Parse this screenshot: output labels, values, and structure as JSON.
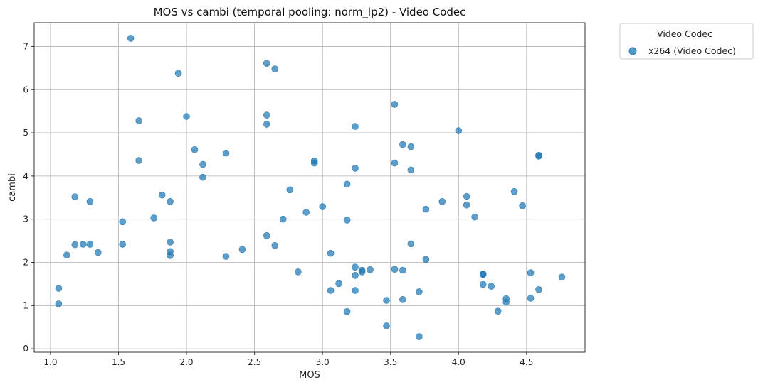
{
  "chart_data": {
    "type": "scatter",
    "title": "MOS vs cambi (temporal pooling: norm_lp2) - Video Codec",
    "xlabel": "MOS",
    "ylabel": "cambi",
    "xlim": [
      0.88,
      4.93
    ],
    "ylim": [
      -0.08,
      7.55
    ],
    "xticks": [
      1.0,
      1.5,
      2.0,
      2.5,
      3.0,
      3.5,
      4.0,
      4.5
    ],
    "xtick_labels": [
      "1.0",
      "1.5",
      "2.0",
      "2.5",
      "3.0",
      "3.5",
      "4.0",
      "4.5"
    ],
    "yticks": [
      0,
      1,
      2,
      3,
      4,
      5,
      6,
      7
    ],
    "ytick_labels": [
      "0",
      "1",
      "2",
      "3",
      "4",
      "5",
      "6",
      "7"
    ],
    "grid": true,
    "legend": {
      "title": "Video Codec",
      "placement": "outside-top-right"
    },
    "series": [
      {
        "name": "x264 (Video Codec)",
        "color": "#1f77b4",
        "points": [
          [
            1.06,
            1.4
          ],
          [
            1.06,
            1.04
          ],
          [
            1.12,
            2.17
          ],
          [
            1.18,
            3.52
          ],
          [
            1.18,
            2.41
          ],
          [
            1.24,
            2.42
          ],
          [
            1.29,
            3.41
          ],
          [
            1.29,
            2.42
          ],
          [
            1.35,
            2.23
          ],
          [
            1.53,
            2.94
          ],
          [
            1.53,
            2.42
          ],
          [
            1.59,
            7.19
          ],
          [
            1.65,
            5.28
          ],
          [
            1.65,
            4.36
          ],
          [
            1.76,
            3.03
          ],
          [
            1.82,
            3.56
          ],
          [
            1.88,
            3.41
          ],
          [
            1.88,
            2.47
          ],
          [
            1.88,
            2.25
          ],
          [
            1.88,
            2.16
          ],
          [
            1.94,
            6.38
          ],
          [
            2.0,
            5.38
          ],
          [
            2.06,
            4.61
          ],
          [
            2.12,
            4.27
          ],
          [
            2.12,
            3.97
          ],
          [
            2.29,
            4.53
          ],
          [
            2.29,
            2.14
          ],
          [
            2.41,
            2.3
          ],
          [
            2.59,
            6.61
          ],
          [
            2.59,
            5.41
          ],
          [
            2.59,
            5.2
          ],
          [
            2.59,
            2.62
          ],
          [
            2.65,
            6.48
          ],
          [
            2.65,
            2.39
          ],
          [
            2.71,
            3.0
          ],
          [
            2.76,
            3.68
          ],
          [
            2.82,
            1.78
          ],
          [
            2.88,
            3.16
          ],
          [
            2.94,
            4.35
          ],
          [
            2.94,
            4.3
          ],
          [
            3.0,
            3.29
          ],
          [
            3.06,
            2.21
          ],
          [
            3.06,
            1.35
          ],
          [
            3.12,
            1.51
          ],
          [
            3.18,
            3.81
          ],
          [
            3.18,
            2.98
          ],
          [
            3.18,
            0.86
          ],
          [
            3.24,
            5.15
          ],
          [
            3.24,
            4.18
          ],
          [
            3.24,
            1.89
          ],
          [
            3.24,
            1.7
          ],
          [
            3.24,
            1.35
          ],
          [
            3.29,
            1.82
          ],
          [
            3.29,
            1.78
          ],
          [
            3.35,
            1.83
          ],
          [
            3.47,
            1.12
          ],
          [
            3.47,
            0.53
          ],
          [
            3.53,
            5.66
          ],
          [
            3.53,
            4.3
          ],
          [
            3.53,
            1.84
          ],
          [
            3.59,
            4.73
          ],
          [
            3.59,
            1.82
          ],
          [
            3.59,
            1.14
          ],
          [
            3.65,
            4.68
          ],
          [
            3.65,
            4.14
          ],
          [
            3.65,
            2.43
          ],
          [
            3.71,
            1.32
          ],
          [
            3.71,
            0.28
          ],
          [
            3.76,
            3.23
          ],
          [
            3.76,
            2.07
          ],
          [
            3.88,
            3.41
          ],
          [
            4.0,
            5.05
          ],
          [
            4.06,
            3.53
          ],
          [
            4.06,
            3.33
          ],
          [
            4.12,
            3.05
          ],
          [
            4.18,
            1.73
          ],
          [
            4.18,
            1.72
          ],
          [
            4.18,
            1.49
          ],
          [
            4.24,
            1.45
          ],
          [
            4.29,
            0.87
          ],
          [
            4.35,
            1.16
          ],
          [
            4.35,
            1.08
          ],
          [
            4.41,
            3.64
          ],
          [
            4.47,
            3.31
          ],
          [
            4.53,
            1.76
          ],
          [
            4.53,
            1.17
          ],
          [
            4.59,
            4.48
          ],
          [
            4.59,
            4.46
          ],
          [
            4.59,
            1.37
          ],
          [
            4.76,
            1.66
          ]
        ]
      }
    ]
  }
}
